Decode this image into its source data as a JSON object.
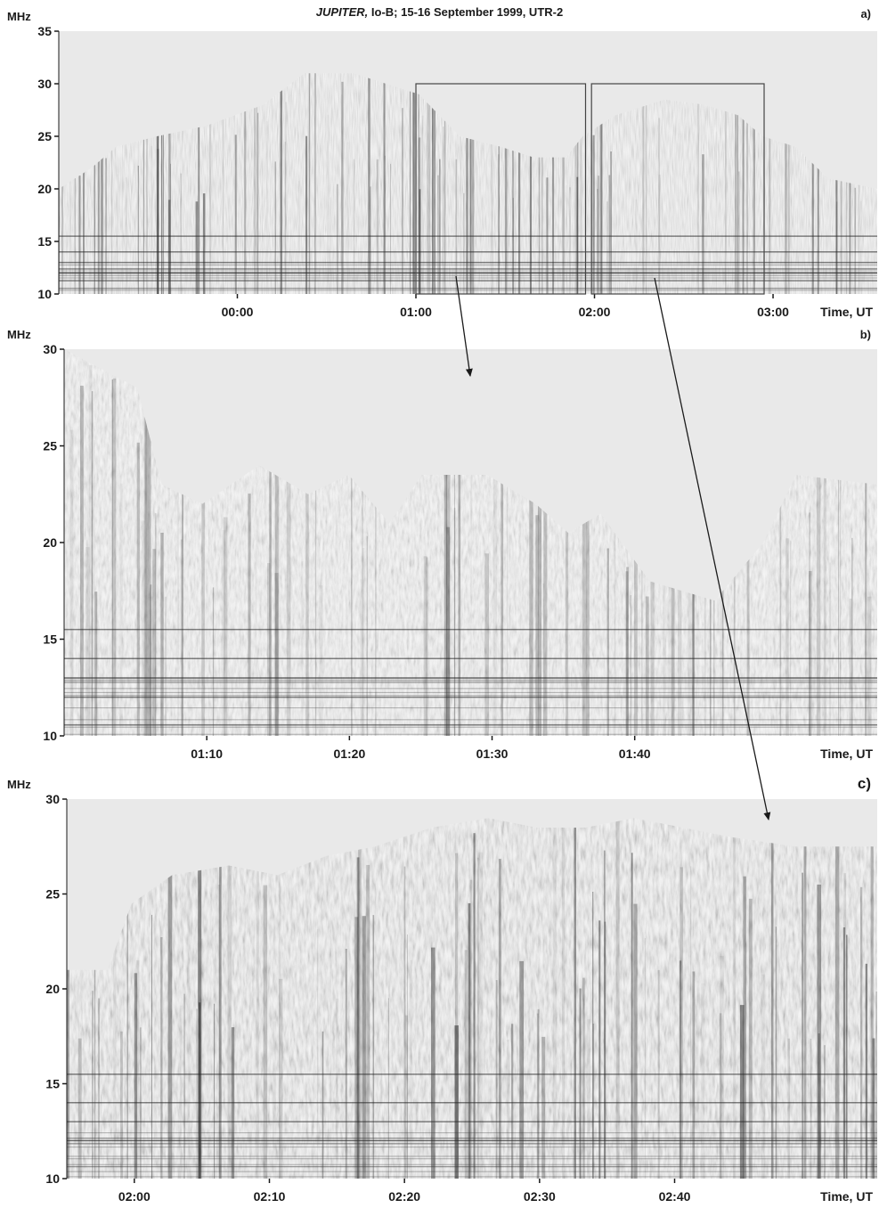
{
  "figure": {
    "title_object": "JUPITER,",
    "title_rest": " Io-B; 15-16 September 1999, UTR-2"
  },
  "chart_data": [
    {
      "type": "heatmap",
      "panel_label": "a)",
      "ylabel": "MHz",
      "xlabel": "Time, UT",
      "ylim": [
        10,
        35
      ],
      "y_ticks": [
        10,
        15,
        20,
        25,
        30,
        35
      ],
      "x_ticks": [
        {
          "label": "00:00",
          "minutes": 0
        },
        {
          "label": "01:00",
          "minutes": 60
        },
        {
          "label": "02:00",
          "minutes": 120
        },
        {
          "label": "03:00",
          "minutes": 180
        }
      ],
      "xlim_minutes": [
        -60,
        215
      ],
      "grid": false,
      "colormap": "grayscale (dark = intense emission)",
      "zoom_boxes": [
        {
          "t_start_minutes": 60,
          "t_end_minutes": 117,
          "f_low": 10,
          "f_high": 30,
          "zooms_to": "b)"
        },
        {
          "t_start_minutes": 119,
          "t_end_minutes": 177,
          "f_low": 10,
          "f_high": 30,
          "zooms_to": "c)"
        }
      ]
    },
    {
      "type": "heatmap",
      "panel_label": "b)",
      "ylabel": "MHz",
      "xlabel": "Time, UT",
      "ylim": [
        10,
        30
      ],
      "y_ticks": [
        10,
        15,
        20,
        25,
        30
      ],
      "x_ticks": [
        {
          "label": "01:10",
          "minutes": 70
        },
        {
          "label": "01:20",
          "minutes": 80
        },
        {
          "label": "01:30",
          "minutes": 90
        },
        {
          "label": "01:40",
          "minutes": 100
        }
      ],
      "xlim_minutes": [
        60,
        117
      ],
      "grid": false,
      "colormap": "grayscale (dark = intense emission)"
    },
    {
      "type": "heatmap",
      "panel_label": "c)",
      "ylabel": "MHz",
      "xlabel": "Time, UT",
      "ylim": [
        10,
        30
      ],
      "y_ticks": [
        10,
        15,
        20,
        25,
        30
      ],
      "x_ticks": [
        {
          "label": "02:00",
          "minutes": 120
        },
        {
          "label": "02:10",
          "minutes": 130
        },
        {
          "label": "02:20",
          "minutes": 140
        },
        {
          "label": "02:30",
          "minutes": 150
        },
        {
          "label": "02:40",
          "minutes": 160
        }
      ],
      "xlim_minutes": [
        115,
        175
      ],
      "grid": false,
      "colormap": "grayscale (dark = intense emission)"
    }
  ]
}
